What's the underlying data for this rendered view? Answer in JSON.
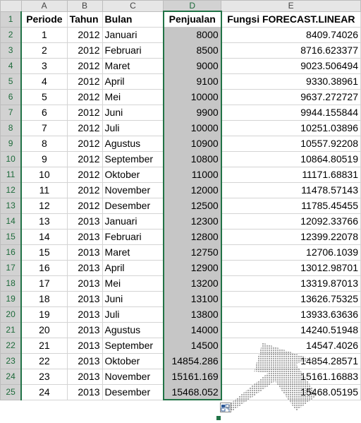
{
  "columns": [
    "A",
    "B",
    "C",
    "D",
    "E"
  ],
  "headers": [
    "Periode",
    "Tahun",
    "Bulan",
    "Penjualan",
    "Fungsi FORECAST.LINEAR"
  ],
  "rows": [
    [
      "1",
      "2012",
      "Januari",
      "8000",
      "8409.74026"
    ],
    [
      "2",
      "2012",
      "Februari",
      "8500",
      "8716.623377"
    ],
    [
      "3",
      "2012",
      "Maret",
      "9000",
      "9023.506494"
    ],
    [
      "4",
      "2012",
      "April",
      "9100",
      "9330.38961"
    ],
    [
      "5",
      "2012",
      "Mei",
      "10000",
      "9637.272727"
    ],
    [
      "6",
      "2012",
      "Juni",
      "9900",
      "9944.155844"
    ],
    [
      "7",
      "2012",
      "Juli",
      "10000",
      "10251.03896"
    ],
    [
      "8",
      "2012",
      "Agustus",
      "10900",
      "10557.92208"
    ],
    [
      "9",
      "2012",
      "September",
      "10800",
      "10864.80519"
    ],
    [
      "10",
      "2012",
      "Oktober",
      "11000",
      "11171.68831"
    ],
    [
      "11",
      "2012",
      "November",
      "12000",
      "11478.57143"
    ],
    [
      "12",
      "2012",
      "Desember",
      "12500",
      "11785.45455"
    ],
    [
      "13",
      "2013",
      "Januari",
      "12300",
      "12092.33766"
    ],
    [
      "14",
      "2013",
      "Februari",
      "12800",
      "12399.22078"
    ],
    [
      "15",
      "2013",
      "Maret",
      "12750",
      "12706.1039"
    ],
    [
      "16",
      "2013",
      "April",
      "12900",
      "13012.98701"
    ],
    [
      "17",
      "2013",
      "Mei",
      "13200",
      "13319.87013"
    ],
    [
      "18",
      "2013",
      "Juni",
      "13100",
      "13626.75325"
    ],
    [
      "19",
      "2013",
      "Juli",
      "13800",
      "13933.63636"
    ],
    [
      "20",
      "2013",
      "Agustus",
      "14000",
      "14240.51948"
    ],
    [
      "21",
      "2013",
      "September",
      "14500",
      "14547.4026"
    ],
    [
      "22",
      "2013",
      "Oktober",
      "14854.286",
      "14854.28571"
    ],
    [
      "23",
      "2013",
      "November",
      "15161.169",
      "15161.16883"
    ],
    [
      "24",
      "2013",
      "Desember",
      "15468.052",
      "15468.05195"
    ]
  ],
  "selected_column": "D",
  "colors": {
    "accent": "#217346",
    "selection_fill": "#c6c6c6",
    "header_bg": "#e6e6e6"
  },
  "icons": {
    "quick_analysis": "quick-analysis-icon",
    "fill_handle": "fill-handle"
  }
}
